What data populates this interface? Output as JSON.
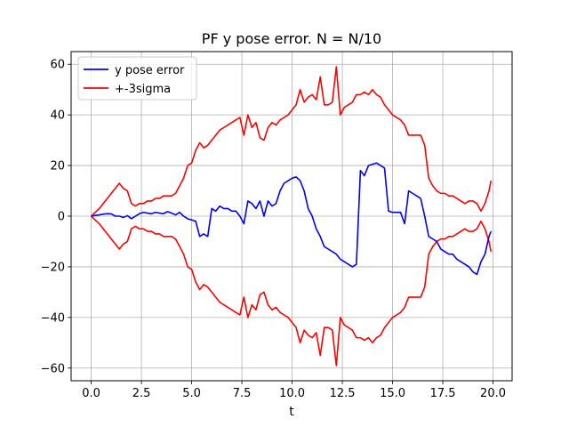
{
  "chart_data": {
    "type": "line",
    "title": "PF y pose error. N = N/10",
    "xlabel": "t",
    "ylabel": "",
    "xlim": [
      -1.0,
      20.95
    ],
    "ylim": [
      -65,
      65
    ],
    "x_ticks": [
      0.0,
      2.5,
      5.0,
      7.5,
      10.0,
      12.5,
      15.0,
      17.5,
      20.0
    ],
    "x_tick_labels": [
      "0.0",
      "2.5",
      "5.0",
      "7.5",
      "10.0",
      "12.5",
      "15.0",
      "17.5",
      "20.0"
    ],
    "y_ticks": [
      -60,
      -40,
      -20,
      0,
      20,
      40,
      60
    ],
    "y_tick_labels": [
      "−60",
      "−40",
      "−20",
      "0",
      "20",
      "40",
      "60"
    ],
    "grid": true,
    "legend_position": "upper-left",
    "colors": {
      "error": "#0000ff",
      "sigma": "#ff0000"
    },
    "series": [
      {
        "name": "y pose error",
        "color": "#0000ff",
        "x": [
          0.0,
          0.2,
          0.4,
          0.6,
          0.8,
          1.0,
          1.2,
          1.4,
          1.6,
          1.8,
          2.0,
          2.2,
          2.4,
          2.6,
          2.8,
          3.0,
          3.2,
          3.4,
          3.6,
          3.8,
          4.0,
          4.2,
          4.4,
          4.6,
          4.8,
          5.0,
          5.2,
          5.4,
          5.6,
          5.8,
          6.0,
          6.2,
          6.4,
          6.6,
          6.8,
          7.0,
          7.2,
          7.4,
          7.6,
          7.8,
          8.0,
          8.2,
          8.4,
          8.6,
          8.8,
          9.0,
          9.2,
          9.4,
          9.6,
          9.8,
          10.0,
          10.2,
          10.4,
          10.6,
          10.8,
          11.0,
          11.2,
          11.4,
          11.6,
          11.8,
          12.0,
          12.2,
          12.4,
          12.6,
          12.8,
          13.0,
          13.2,
          13.4,
          13.6,
          13.8,
          14.0,
          14.2,
          14.4,
          14.6,
          14.8,
          15.0,
          15.2,
          15.4,
          15.6,
          15.8,
          16.0,
          16.2,
          16.4,
          16.6,
          16.8,
          17.0,
          17.2,
          17.4,
          17.6,
          17.8,
          18.0,
          18.2,
          18.4,
          18.6,
          18.8,
          19.0,
          19.2,
          19.4,
          19.6,
          19.8,
          19.9
        ],
        "y": [
          0,
          0.3,
          0.5,
          0.8,
          1,
          0.9,
          0,
          0,
          -0.5,
          0.2,
          -1,
          0,
          1,
          1.5,
          1.2,
          1,
          1.5,
          1.2,
          1,
          1.8,
          1.2,
          0.5,
          1.5,
          0,
          -1,
          -1.5,
          -2,
          -8,
          -7,
          -8,
          3,
          2,
          4,
          3,
          3,
          2,
          2,
          0,
          -3,
          6,
          5,
          3,
          6,
          0,
          6,
          4,
          5,
          10,
          13,
          14,
          15,
          15.5,
          14,
          10,
          3,
          0,
          -5,
          -8,
          -12,
          -13,
          -14,
          -15,
          -17,
          -18,
          -19,
          -20,
          -19,
          18,
          16,
          20,
          20.5,
          21,
          20,
          19,
          2,
          1.5,
          1.5,
          1.5,
          -3,
          10,
          9,
          8,
          7,
          0,
          -8,
          -9,
          -10,
          -13,
          -14,
          -15,
          -15,
          -17,
          -18,
          -19,
          -20,
          -22,
          -23,
          -18,
          -15,
          -8,
          -6
        ]
      },
      {
        "name": "+-3sigma",
        "color": "#ff0000",
        "x": [
          0.0,
          0.2,
          0.4,
          0.6,
          0.8,
          1.0,
          1.2,
          1.4,
          1.6,
          1.8,
          2.0,
          2.2,
          2.4,
          2.6,
          2.8,
          3.0,
          3.2,
          3.4,
          3.6,
          3.8,
          4.0,
          4.2,
          4.4,
          4.6,
          4.8,
          5.0,
          5.2,
          5.4,
          5.6,
          5.8,
          6.0,
          6.2,
          6.4,
          6.6,
          6.8,
          7.0,
          7.2,
          7.4,
          7.6,
          7.8,
          8.0,
          8.2,
          8.4,
          8.6,
          8.8,
          9.0,
          9.2,
          9.4,
          9.6,
          9.8,
          10.0,
          10.2,
          10.4,
          10.6,
          10.8,
          11.0,
          11.2,
          11.4,
          11.6,
          11.8,
          12.0,
          12.2,
          12.4,
          12.6,
          12.8,
          13.0,
          13.2,
          13.4,
          13.6,
          13.8,
          14.0,
          14.2,
          14.4,
          14.6,
          14.8,
          15.0,
          15.2,
          15.4,
          15.6,
          15.8,
          16.0,
          16.2,
          16.4,
          16.6,
          16.8,
          17.0,
          17.2,
          17.4,
          17.6,
          17.8,
          18.0,
          18.2,
          18.4,
          18.6,
          18.8,
          19.0,
          19.2,
          19.4,
          19.6,
          19.8,
          19.9
        ],
        "y": [
          0,
          1.5,
          3,
          5,
          7,
          9,
          11,
          13,
          11,
          10,
          5,
          4,
          5,
          5,
          6,
          6,
          7,
          7,
          8,
          8,
          8,
          9,
          12,
          15,
          20,
          21,
          26,
          29,
          27,
          28,
          30,
          32,
          34,
          35,
          36,
          37,
          38,
          39,
          32,
          40,
          35,
          37,
          31,
          30,
          35,
          37,
          36,
          38,
          39,
          40,
          42,
          44,
          50,
          45,
          47,
          48,
          46,
          55,
          44,
          44,
          45,
          59,
          40,
          43,
          44,
          45,
          48,
          48,
          49,
          48,
          50,
          48,
          47,
          44,
          42,
          40,
          39,
          38,
          36,
          32,
          32,
          32,
          32,
          28,
          15,
          12,
          10,
          9,
          9,
          8,
          8,
          7,
          6,
          5,
          6,
          6,
          5,
          2,
          5,
          10,
          14
        ]
      }
    ]
  }
}
